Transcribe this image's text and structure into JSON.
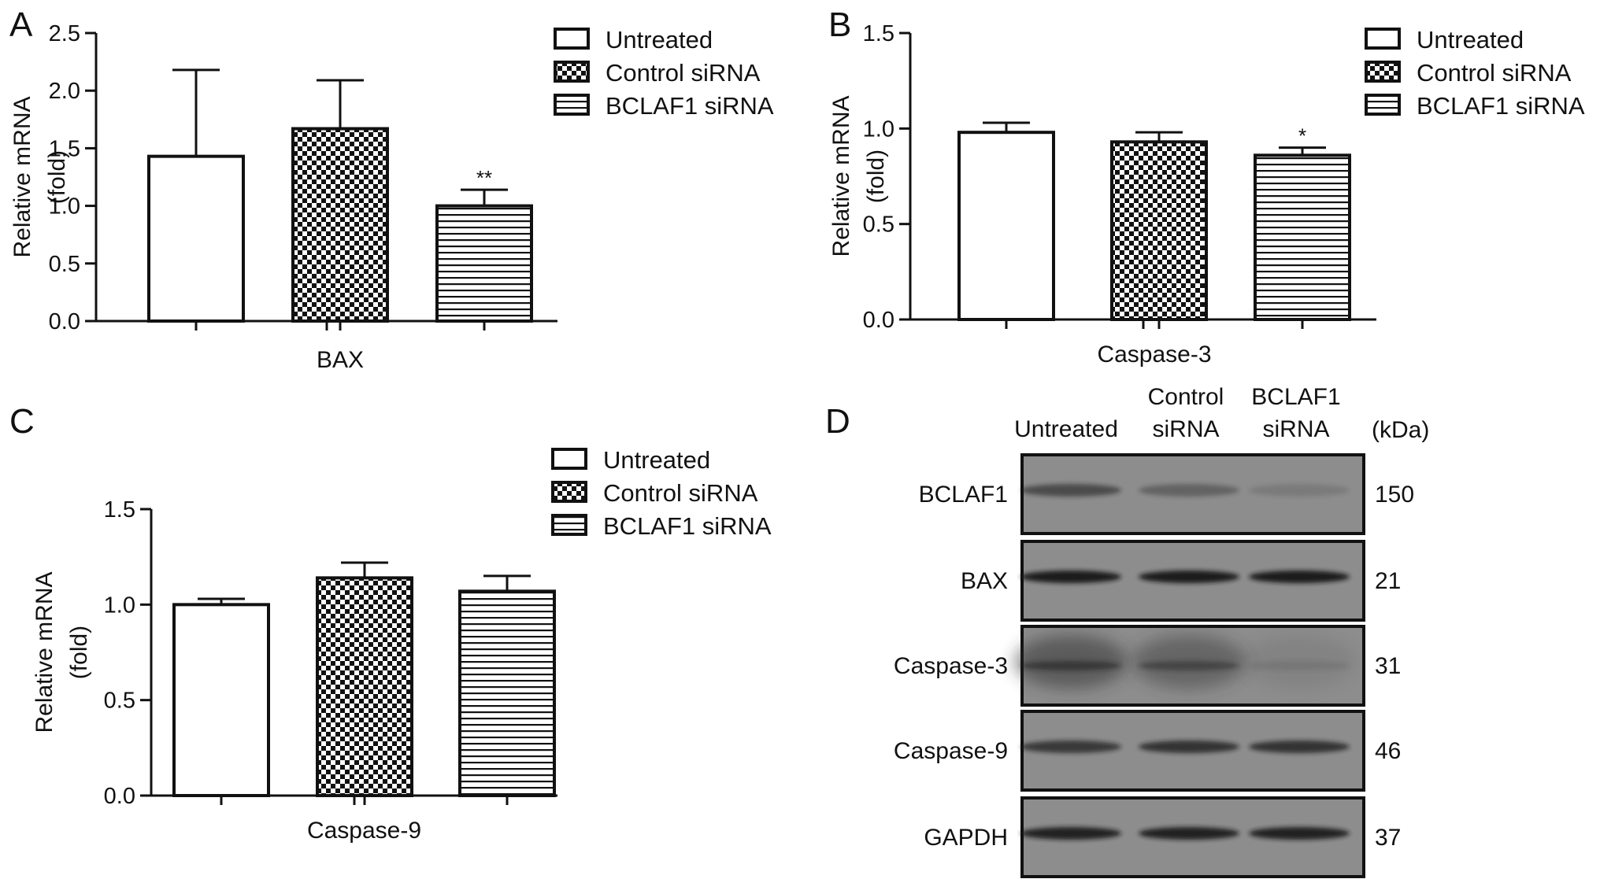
{
  "panels": {
    "A": "A",
    "B": "B",
    "C": "C",
    "D": "D"
  },
  "legend": {
    "untreated": "Untreated",
    "control": "Control siRNA",
    "bclaf1": "BCLAF1 siRNA"
  },
  "chart_data": [
    {
      "type": "bar",
      "panel": "A",
      "xlabel": "BAX",
      "ylabel": [
        "Relative mRNA",
        "(fold)"
      ],
      "ylim": [
        0,
        2.5
      ],
      "yticks": [
        "0.0",
        "0.5",
        "1.0",
        "1.5",
        "2.0",
        "2.5"
      ],
      "categories": [
        "Untreated",
        "Control siRNA",
        "BCLAF1 siRNA"
      ],
      "values": [
        1.43,
        1.67,
        1.0
      ],
      "errors": [
        0.75,
        0.42,
        0.14
      ],
      "significance": [
        "",
        "",
        "**"
      ],
      "legend_position": "top-right"
    },
    {
      "type": "bar",
      "panel": "B",
      "xlabel": "Caspase-3",
      "ylabel": [
        "Relative mRNA",
        "(fold)"
      ],
      "ylim": [
        0,
        1.5
      ],
      "yticks": [
        "0.0",
        "0.5",
        "1.0",
        "1.5"
      ],
      "categories": [
        "Untreated",
        "Control siRNA",
        "BCLAF1 siRNA"
      ],
      "values": [
        0.98,
        0.93,
        0.86
      ],
      "errors": [
        0.05,
        0.05,
        0.04
      ],
      "significance": [
        "",
        "",
        "*"
      ],
      "legend_position": "top-right"
    },
    {
      "type": "bar",
      "panel": "C",
      "xlabel": "Caspase-9",
      "ylabel": [
        "Relative mRNA",
        "(fold)"
      ],
      "ylim": [
        0,
        1.5
      ],
      "yticks": [
        "0.0",
        "0.5",
        "1.0",
        "1.5"
      ],
      "categories": [
        "Untreated",
        "Control siRNA",
        "BCLAF1 siRNA"
      ],
      "values": [
        1.0,
        1.14,
        1.07
      ],
      "errors": [
        0.03,
        0.08,
        0.08
      ],
      "significance": [
        "",
        "",
        ""
      ],
      "legend_position": "top-right"
    }
  ],
  "western_blot": {
    "columns": [
      {
        "lines": [
          "Untreated"
        ]
      },
      {
        "lines": [
          "Control",
          "siRNA"
        ]
      },
      {
        "lines": [
          "BCLAF1",
          "siRNA"
        ]
      }
    ],
    "unit": "(kDa)",
    "rows": [
      {
        "label": "BCLAF1",
        "kda": "150",
        "intensity": [
          0.55,
          0.35,
          0.15
        ]
      },
      {
        "label": "BAX",
        "kda": "21",
        "intensity": [
          0.95,
          0.95,
          0.95
        ]
      },
      {
        "label": "Caspase-3",
        "kda": "31",
        "intensity": [
          0.5,
          0.4,
          0.1
        ]
      },
      {
        "label": "Caspase-9",
        "kda": "46",
        "intensity": [
          0.7,
          0.75,
          0.75
        ]
      },
      {
        "label": "GAPDH",
        "kda": "37",
        "intensity": [
          0.9,
          0.9,
          0.9
        ]
      }
    ]
  },
  "colors": {
    "axis": "#111111",
    "bar_fill": "#ffffff",
    "blot_background": "#8d8d8d",
    "blot_band": "#151515"
  }
}
